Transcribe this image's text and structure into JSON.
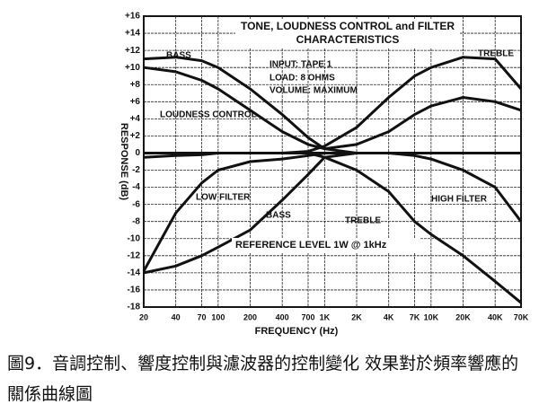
{
  "chart_data": {
    "type": "line",
    "title": [
      "TONE, LOUDNESS CONTROL and FILTER",
      "CHARACTERISTICS"
    ],
    "annotations": [
      "INPUT: TAPE 1",
      "LOAD: 8 OHMS",
      "VOLUME: MAXIMUM",
      "REFERENCE LEVEL 1W @ 1kHz"
    ],
    "xlabel": "FREQUENCY (Hz)",
    "ylabel": "RESPONSE (dB)",
    "log_x": true,
    "grid": true,
    "color": "#111111",
    "x": [
      20,
      40,
      70,
      100,
      200,
      400,
      700,
      1000,
      2000,
      4000,
      7000,
      10000,
      20000,
      40000,
      70000
    ],
    "xlim": [
      20,
      70000
    ],
    "xticks": [
      20,
      40,
      70,
      100,
      200,
      400,
      700,
      {
        "value": 1000,
        "label": "1K"
      },
      {
        "value": 2000,
        "label": "2K"
      },
      {
        "value": 4000,
        "label": "4K"
      },
      {
        "value": 7000,
        "label": "7K"
      },
      {
        "value": 10000,
        "label": "10K"
      },
      {
        "value": 20000,
        "label": "20K"
      },
      {
        "value": 40000,
        "label": "40K"
      },
      {
        "value": 70000,
        "label": "70K"
      }
    ],
    "ylim": [
      -18,
      16
    ],
    "yticks": [
      -18,
      -16,
      -14,
      -12,
      -10,
      -8,
      -6,
      -4,
      -2,
      0,
      {
        "value": 2,
        "label": "+2"
      },
      {
        "value": 4,
        "label": "+4"
      },
      {
        "value": 6,
        "label": "+6"
      },
      {
        "value": 8,
        "label": "+8"
      },
      {
        "value": 10,
        "label": "+10"
      },
      {
        "value": 12,
        "label": "+12"
      },
      {
        "value": 14,
        "label": "+14"
      },
      {
        "value": 16,
        "label": "+16"
      }
    ],
    "series": [
      {
        "name": "BASS",
        "color": "#111111",
        "values": [
          11,
          11.2,
          10.8,
          10,
          7.5,
          4.5,
          1.8,
          0.5,
          0,
          0,
          0,
          0,
          0,
          0,
          0
        ]
      },
      {
        "name": "TREBLE",
        "color": "#111111",
        "values": [
          0,
          0,
          0,
          0,
          0,
          0,
          0.2,
          0.8,
          3,
          6.5,
          9,
          10,
          11.2,
          11,
          7.5
        ]
      },
      {
        "name": "LOUDNESS CONTROL",
        "color": "#111111",
        "values": [
          10,
          9.5,
          8.5,
          7.5,
          5,
          2.5,
          1,
          0.5,
          1,
          2.5,
          4.5,
          5.5,
          6.5,
          6,
          5
        ]
      },
      {
        "name": "LOW FILTER",
        "color": "#111111",
        "values": [
          -13.8,
          -7,
          -3.5,
          -2,
          -1,
          -0.7,
          -0.3,
          0,
          0,
          0,
          0,
          0,
          0,
          0,
          0
        ]
      },
      {
        "name": "BASS",
        "color": "#111111",
        "values": [
          -14,
          -13.2,
          -12,
          -11,
          -9,
          -5.5,
          -2.5,
          -0.5,
          0,
          0,
          0,
          0,
          0,
          0,
          0
        ]
      },
      {
        "name": "TREBLE",
        "color": "#111111",
        "values": [
          0,
          0,
          0,
          0,
          0,
          0,
          0,
          -0.5,
          -2,
          -4.5,
          -8,
          -9.5,
          -12,
          -15,
          -17.5
        ]
      },
      {
        "name": "HIGH FILTER",
        "color": "#111111",
        "values": [
          -0.5,
          -0.3,
          -0.2,
          0,
          0,
          0,
          0,
          0,
          0,
          0,
          -0.3,
          -0.7,
          -2,
          -4,
          -8
        ]
      }
    ]
  },
  "caption": "圖9．音調控制、響度控制與濾波器的控制變化 效果對於頻率響應的關係曲線圖"
}
